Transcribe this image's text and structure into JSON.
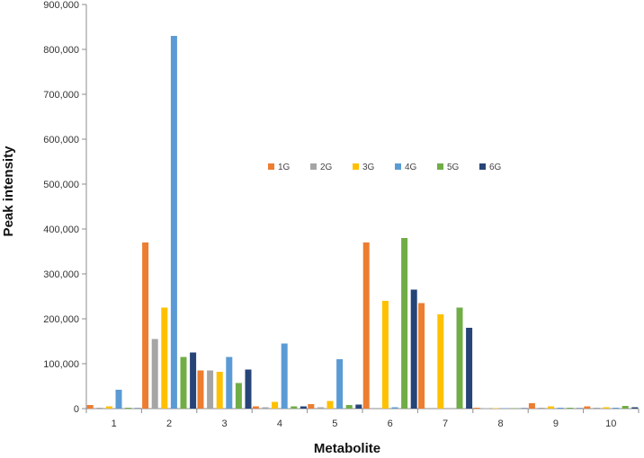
{
  "chart_data": {
    "type": "bar",
    "title": "",
    "xlabel": "Metabolite",
    "ylabel": "Peak intensity",
    "ylim": [
      0,
      900000
    ],
    "y_ticks": [
      "0",
      "100,000",
      "200,000",
      "300,000",
      "400,000",
      "500,000",
      "600,000",
      "700,000",
      "800,000",
      "900,000"
    ],
    "categories": [
      "1",
      "2",
      "3",
      "4",
      "5",
      "6",
      "7",
      "8",
      "9",
      "10"
    ],
    "grid": false,
    "legend_position": "upper-center",
    "series": [
      {
        "name": "1G",
        "color": "#ED7D31",
        "values": [
          8000,
          370000,
          85000,
          5000,
          10000,
          370000,
          235000,
          2000,
          12000,
          5000
        ]
      },
      {
        "name": "2G",
        "color": "#A5A5A5",
        "values": [
          2000,
          155000,
          85000,
          3000,
          3000,
          0,
          0,
          1000,
          2000,
          2000
        ]
      },
      {
        "name": "3G",
        "color": "#FFC000",
        "values": [
          5000,
          225000,
          82000,
          15000,
          17000,
          240000,
          210000,
          1000,
          5000,
          3000
        ]
      },
      {
        "name": "4G",
        "color": "#5B9BD5",
        "values": [
          42000,
          830000,
          115000,
          145000,
          110000,
          3000,
          0,
          1000,
          2000,
          2000
        ]
      },
      {
        "name": "5G",
        "color": "#70AD47",
        "values": [
          2000,
          115000,
          57000,
          5000,
          8000,
          380000,
          225000,
          1000,
          2000,
          6000
        ]
      },
      {
        "name": "6G",
        "color": "#264478",
        "values": [
          1000,
          125000,
          87000,
          5000,
          9000,
          265000,
          180000,
          1000,
          1000,
          3000
        ]
      }
    ]
  }
}
